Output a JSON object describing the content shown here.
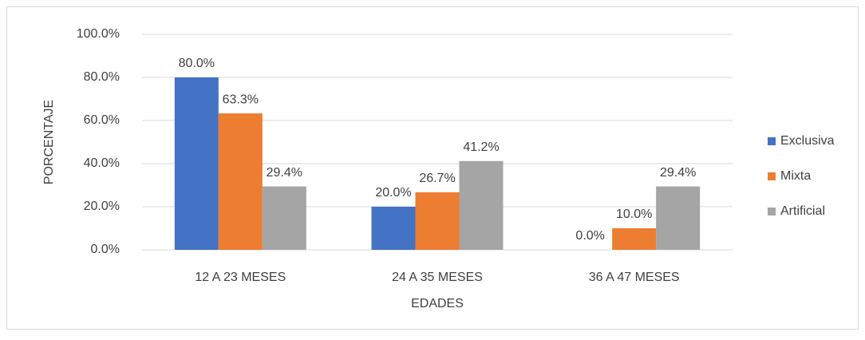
{
  "chart_data": {
    "type": "bar",
    "categories": [
      "12 A 23 MESES",
      "24 A 35 MESES",
      "36 A 47 MESES"
    ],
    "series": [
      {
        "name": "Exclusiva",
        "color": "#4472c4",
        "values": [
          80.0,
          20.0,
          0.0
        ],
        "value_labels": [
          "80.0%",
          "20.0%",
          "0.0%"
        ]
      },
      {
        "name": "Mixta",
        "color": "#ed7d31",
        "values": [
          63.3,
          26.7,
          10.0
        ],
        "value_labels": [
          "63.3%",
          "26.7%",
          "10.0%"
        ]
      },
      {
        "name": "Artificial",
        "color": "#a5a5a5",
        "values": [
          29.4,
          41.2,
          29.4
        ],
        "value_labels": [
          "29.4%",
          "41.2%",
          "29.4%"
        ]
      }
    ],
    "x_label": "EDADES",
    "y_label": "PORCENTAJE",
    "ylim": [
      0,
      100
    ],
    "yticks": [
      {
        "value": 0,
        "label": "0.0%"
      },
      {
        "value": 20,
        "label": "20.0%"
      },
      {
        "value": 40,
        "label": "40.0%"
      },
      {
        "value": 60,
        "label": "60.0%"
      },
      {
        "value": 80,
        "label": "80.0%"
      },
      {
        "value": 100,
        "label": "100.0%"
      }
    ],
    "grid": true,
    "legend": "right"
  }
}
